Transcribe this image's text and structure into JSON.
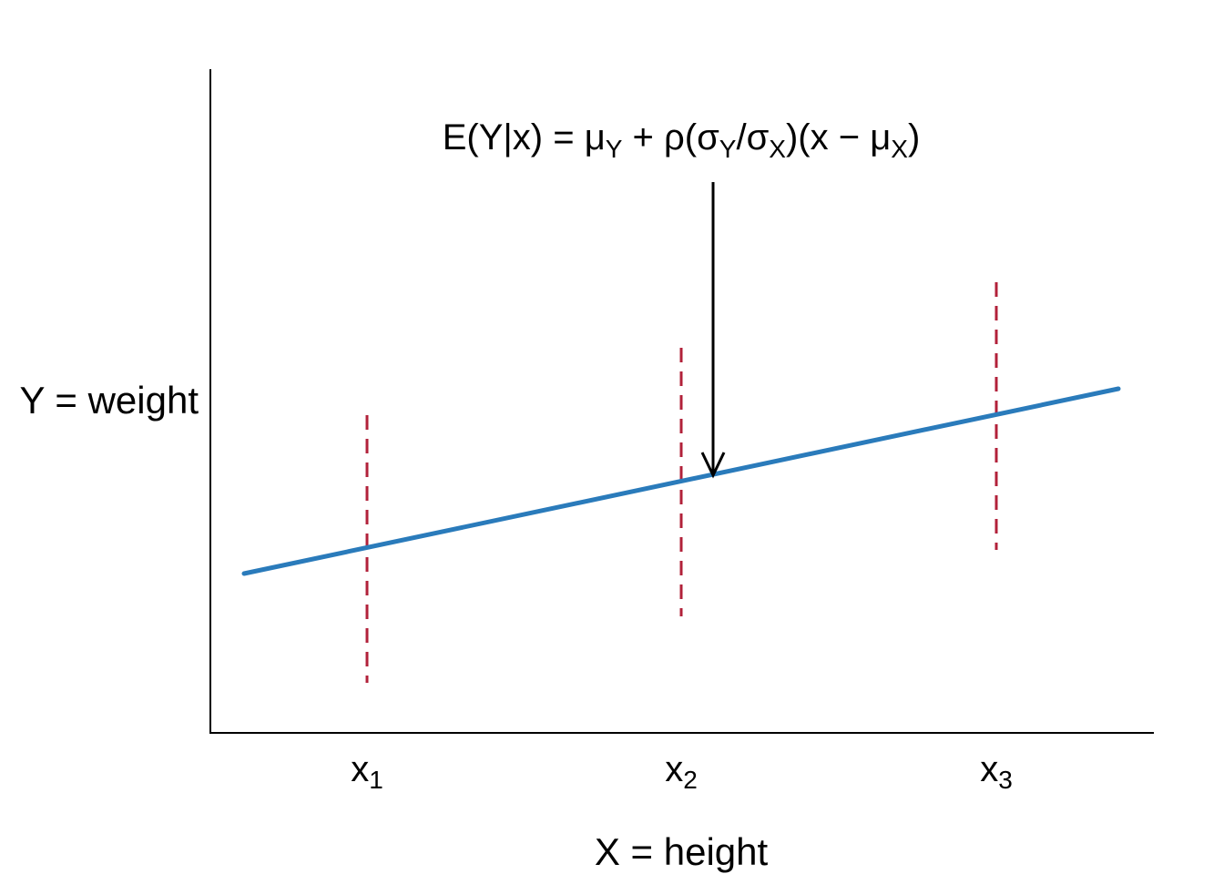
{
  "formula": [
    {
      "text": "E(Y|x) = μ",
      "sub": "Y"
    },
    {
      "text": " + ρ(σ",
      "sub": "Y"
    },
    {
      "text": "/σ",
      "sub": "X"
    },
    {
      "text": ")(x − μ",
      "sub": "X"
    },
    {
      "text": ")"
    }
  ],
  "y_axis_label": "Y = weight",
  "x_axis_label": "X = height",
  "x_ticks": [
    {
      "text": "x",
      "sub": "1"
    },
    {
      "text": "x",
      "sub": "2"
    },
    {
      "text": "x",
      "sub": "3"
    }
  ]
}
